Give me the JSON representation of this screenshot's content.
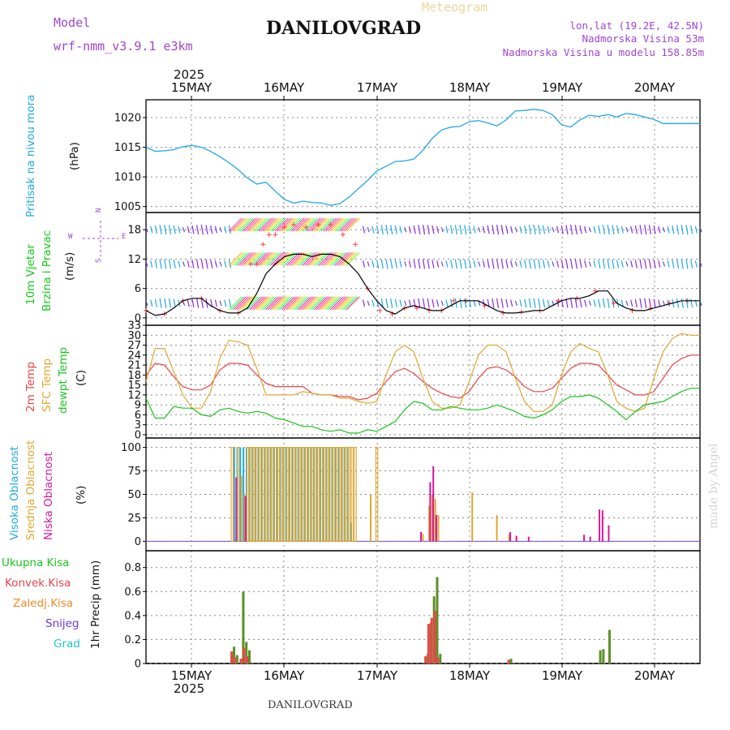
{
  "header": {
    "left_top": "Model",
    "left_bottom": "wrf-nmm_v3.9.1  e3km",
    "center_small": "Meteogram",
    "center_title": "DANILOVGRAD",
    "right_1": "lon,lat (19.2E, 42.5N)",
    "right_2": "Nadmorska Visina 53m",
    "right_3": "Nadmorska Visina u modelu 158.85m",
    "bottom_label": "DANILOVGRAD",
    "watermark": "made by Angel"
  },
  "colors": {
    "pressure": "#1fa8e6",
    "wind_label1": "#17c81b",
    "wind_label2": "#17c81b",
    "temp2m": "#e8464a",
    "sfc": "#e0a730",
    "dew": "#19c51d",
    "high": "#22a9e2",
    "mid": "#e0a730",
    "low": "#d4199a",
    "rain": "#5d8f25",
    "conv": "#e8464a",
    "freez": "#f08a2a",
    "snow": "#6a3ad6",
    "grad": "#22c6c6",
    "purple": "#a045d0"
  },
  "time_axis": {
    "year": "2025",
    "day_labels": [
      "15MAY",
      "16MAY",
      "17MAY",
      "18MAY",
      "19MAY",
      "20MAY"
    ]
  },
  "panels": {
    "pressure": {
      "label": "Pritisak na nivou mora",
      "unit": "(hPa)"
    },
    "wind": {
      "label1": "10m Vjetar",
      "label2": "Brzina i Pravac",
      "unit": "(m/s)",
      "compass_n": "N",
      "compass_w": "W",
      "compass_e": "E",
      "compass_s": "S"
    },
    "temp": {
      "label1": "2m Temp",
      "label2": "SFC Temp",
      "label3": "dewpt Temp",
      "unit": "(C)"
    },
    "cloud": {
      "label1": "Visoka Oblacnost",
      "label2": "Srednja Oblacnost",
      "label3": "Niska Oblacnost",
      "unit": "(%)"
    },
    "precip": {
      "label1": "Ukupna Kisa",
      "label2": "Konvek.Kisa",
      "label3": "Zaledj.Kisa",
      "label4": "Snijeg",
      "label5": "Grad",
      "unit": "1hr Precip (mm)"
    }
  },
  "chart_data": [
    {
      "type": "line",
      "title": "Pritisak na nivou mora",
      "ylabel": "(hPa)",
      "ylim": [
        1004,
        1023
      ],
      "yticks": [
        1005,
        1010,
        1015,
        1020
      ],
      "t": [
        0,
        3,
        6,
        9,
        12,
        15,
        18,
        21,
        24,
        27,
        30,
        33,
        36,
        39,
        42,
        45,
        48,
        51,
        54,
        57,
        60,
        63,
        66,
        69,
        72,
        75,
        78,
        81,
        84,
        87,
        90,
        93,
        96,
        99,
        102,
        105,
        108,
        111,
        114,
        117,
        120,
        123,
        126,
        129,
        132,
        135,
        138,
        141,
        144,
        147,
        150,
        153,
        156,
        159,
        162,
        165,
        168,
        171,
        174,
        177,
        180
      ],
      "values": [
        1015,
        1014.3,
        1014.4,
        1014.6,
        1015.1,
        1015.3,
        1015,
        1014.3,
        1013.4,
        1012.4,
        1011.2,
        1009.8,
        1008.8,
        1009.1,
        1007.6,
        1006.2,
        1005.6,
        1005.9,
        1005.7,
        1005.6,
        1005.2,
        1005.5,
        1006.6,
        1008,
        1009.4,
        1011,
        1011.8,
        1012.6,
        1012.7,
        1013,
        1014.5,
        1016.5,
        1017.9,
        1018.4,
        1018.5,
        1019.3,
        1019.5,
        1019.1,
        1018.6,
        1019.6,
        1021.1,
        1021.2,
        1021.4,
        1021.2,
        1020.5,
        1018.8,
        1018.4,
        1019.6,
        1020.4,
        1020.2,
        1020.5,
        1020.1,
        1020.7,
        1020.5,
        1020.1,
        1019.7,
        1019,
        1019,
        1019,
        1019,
        1019
      ]
    },
    {
      "type": "line",
      "title": "10m Vjetar Brzina i Pravac",
      "ylabel": "(m/s)",
      "ylim": [
        -1.5,
        21.5
      ],
      "yticks": [
        0,
        6,
        12,
        18
      ],
      "t": [
        0,
        3,
        6,
        9,
        12,
        15,
        18,
        21,
        24,
        27,
        30,
        33,
        36,
        39,
        42,
        45,
        48,
        51,
        54,
        57,
        60,
        63,
        66,
        69,
        72,
        75,
        78,
        81,
        84,
        87,
        90,
        93,
        96,
        99,
        102,
        105,
        108,
        111,
        114,
        117,
        120,
        123,
        126,
        129,
        132,
        135,
        138,
        141,
        144,
        147,
        150,
        153,
        156,
        159,
        162,
        165,
        168,
        171,
        174,
        177,
        180
      ],
      "values": [
        1.5,
        0.5,
        0.8,
        2,
        3.5,
        4,
        4,
        2.5,
        1.5,
        1,
        1,
        2,
        5,
        9,
        11,
        12.5,
        13,
        13,
        12.5,
        13,
        13,
        12.5,
        11,
        9,
        6,
        3.5,
        1.5,
        0.8,
        2,
        2.5,
        2,
        1.5,
        1.5,
        2.5,
        3.5,
        3.5,
        3.5,
        2.5,
        1.5,
        1,
        1,
        1.2,
        1.5,
        1.5,
        2.5,
        3.5,
        4,
        4,
        4.5,
        5.5,
        5.5,
        3,
        2,
        1.5,
        1.5,
        2,
        2.5,
        3,
        3.5,
        3.5,
        3.5
      ]
    },
    {
      "type": "line",
      "title": "2m Temp / SFC Temp / dewpt Temp",
      "ylabel": "(C)",
      "ylim": [
        -1,
        33
      ],
      "yticks": [
        0,
        3,
        6,
        9,
        12,
        15,
        18,
        21,
        24,
        27,
        30,
        33
      ],
      "t": [
        0,
        3,
        6,
        9,
        12,
        15,
        18,
        21,
        24,
        27,
        30,
        33,
        36,
        39,
        42,
        45,
        48,
        51,
        54,
        57,
        60,
        63,
        66,
        69,
        72,
        75,
        78,
        81,
        84,
        87,
        90,
        93,
        96,
        99,
        102,
        105,
        108,
        111,
        114,
        117,
        120,
        123,
        126,
        129,
        132,
        135,
        138,
        141,
        144,
        147,
        150,
        153,
        156,
        159,
        162,
        165,
        168,
        171,
        174,
        177,
        180
      ],
      "series": [
        {
          "name": "2m Temp",
          "values": [
            18,
            21.5,
            21,
            17.5,
            14.5,
            13.5,
            13.5,
            15,
            19.5,
            21.5,
            21.5,
            21,
            18,
            15.5,
            14.5,
            14.5,
            14.5,
            14.5,
            12.5,
            12,
            12,
            11.5,
            11.5,
            10.5,
            11,
            12.5,
            16,
            19,
            20,
            18.5,
            16,
            14,
            12.5,
            11.5,
            11,
            13,
            17,
            20,
            20.5,
            19.5,
            17.5,
            14.5,
            13,
            13,
            14,
            17,
            20,
            21.5,
            21.5,
            21,
            18,
            15,
            13.5,
            12,
            12,
            13,
            17,
            21,
            23,
            24,
            24
          ]
        },
        {
          "name": "SFC Temp",
          "values": [
            16,
            26,
            26,
            19,
            12,
            8,
            8,
            13,
            23,
            28.5,
            28,
            27,
            20,
            12,
            12,
            12,
            12,
            13,
            12.5,
            12,
            12,
            11,
            11,
            10,
            9.5,
            10,
            18,
            25,
            27,
            25,
            17,
            10,
            8,
            8,
            9,
            16,
            24,
            27,
            27,
            25,
            17,
            10,
            7,
            7,
            9,
            18,
            25,
            27.5,
            26,
            25,
            18,
            10,
            8,
            7,
            8,
            17,
            25,
            29,
            30.5,
            30,
            30
          ]
        },
        {
          "name": "dewpt Temp",
          "values": [
            11,
            5,
            5,
            8.5,
            8,
            8,
            6,
            5.5,
            7.5,
            8,
            7,
            6.5,
            7,
            6.5,
            5,
            4.5,
            3.5,
            2.5,
            2.5,
            1.5,
            1,
            1.5,
            0.5,
            0.5,
            1.5,
            1,
            2.5,
            4,
            7.5,
            10,
            9.5,
            7.5,
            7.5,
            8.5,
            8,
            7.5,
            7.5,
            8,
            9,
            8,
            7,
            5.5,
            5,
            6,
            7.5,
            10,
            11.5,
            11.5,
            12,
            11,
            9,
            7,
            4.5,
            7,
            9,
            9.5,
            10,
            11.5,
            13,
            14,
            14
          ]
        }
      ]
    },
    {
      "type": "bar",
      "title": "Oblacnost",
      "ylabel": "(%)",
      "ylim": [
        -10,
        110
      ],
      "yticks": [
        0,
        25,
        50,
        75,
        100
      ],
      "series": [
        {
          "name": "Visoka Oblacnost",
          "t": [
            29,
            30,
            31,
            32,
            33,
            34,
            35,
            36,
            37,
            38,
            39,
            40,
            41,
            42,
            43,
            44,
            45,
            46,
            47,
            48,
            49,
            50,
            51,
            52,
            53,
            54,
            55,
            56,
            57,
            58,
            59,
            60,
            61,
            62,
            63,
            64,
            65,
            66,
            67
          ],
          "values": [
            100,
            100,
            100,
            100,
            100,
            100,
            100,
            100,
            100,
            100,
            100,
            100,
            100,
            100,
            100,
            100,
            100,
            100,
            100,
            100,
            100,
            100,
            100,
            100,
            100,
            100,
            100,
            100,
            100,
            100,
            100,
            100,
            100,
            100,
            100,
            100,
            100,
            100,
            20
          ]
        },
        {
          "name": "Srednja Oblacnost",
          "t": [
            28,
            30,
            31,
            32,
            33,
            34,
            35,
            36,
            37,
            38,
            39,
            40,
            41,
            42,
            43,
            44,
            45,
            46,
            47,
            48,
            49,
            50,
            51,
            52,
            53,
            54,
            55,
            56,
            57,
            58,
            59,
            60,
            61,
            62,
            63,
            64,
            65,
            66,
            67,
            68,
            73,
            75,
            90,
            92,
            93,
            94,
            95,
            106,
            114,
            118
          ],
          "values": [
            100,
            100,
            70,
            50,
            100,
            100,
            100,
            100,
            100,
            100,
            100,
            100,
            100,
            100,
            100,
            100,
            100,
            100,
            100,
            100,
            100,
            100,
            100,
            100,
            100,
            100,
            100,
            100,
            100,
            100,
            100,
            100,
            100,
            100,
            100,
            100,
            100,
            100,
            100,
            100,
            50,
            100,
            8,
            38,
            50,
            45,
            28,
            52,
            28,
            8
          ]
        },
        {
          "name": "Niska Oblacnost",
          "t": [
            29,
            32,
            89,
            92,
            93,
            94,
            118,
            120,
            124,
            142,
            144,
            147,
            148,
            150
          ],
          "values": [
            68,
            48,
            10,
            63,
            80,
            28,
            10,
            6,
            5,
            7,
            5,
            34,
            33,
            17
          ]
        }
      ]
    },
    {
      "type": "bar",
      "title": "1hr Precip",
      "ylabel": "1hr Precip (mm)",
      "ylim": [
        0,
        0.94
      ],
      "yticks": [
        0,
        0.2,
        0.4,
        0.6,
        0.8
      ],
      "series": [
        {
          "name": "Ukupna Kisa",
          "t": [
            28,
            29,
            31,
            32,
            33,
            91,
            92,
            93,
            94,
            95,
            118,
            147,
            148,
            150
          ],
          "values": [
            0.14,
            0.07,
            0.6,
            0.18,
            0.11,
            0.08,
            0.34,
            0.56,
            0.72,
            0.08,
            0.04,
            0.11,
            0.12,
            0.28
          ]
        },
        {
          "name": "Konvek.Kisa",
          "t": [
            28,
            29,
            31,
            32,
            33,
            91,
            92,
            93,
            94,
            95,
            118
          ],
          "values": [
            0.1,
            0.05,
            0.04,
            0.13,
            0.06,
            0.06,
            0.33,
            0.38,
            0.44,
            0.05,
            0.03
          ]
        }
      ]
    }
  ]
}
